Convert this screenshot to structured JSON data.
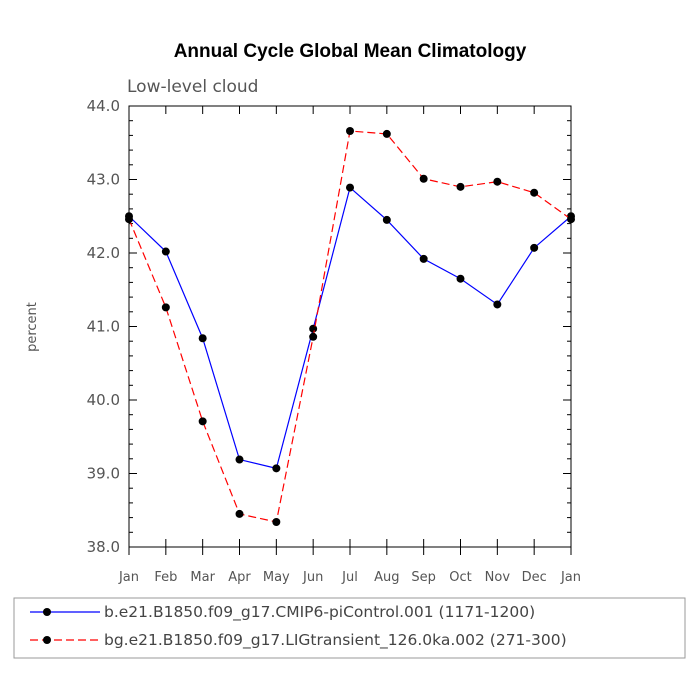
{
  "chart_data": {
    "type": "line",
    "title": "Annual Cycle Global Mean Climatology",
    "subtitle": "Low-level cloud",
    "xlabel": "",
    "ylabel": "percent",
    "categories": [
      "Jan",
      "Feb",
      "Mar",
      "Apr",
      "May",
      "Jun",
      "Jul",
      "Aug",
      "Sep",
      "Oct",
      "Nov",
      "Dec",
      "Jan"
    ],
    "ylim": [
      38.0,
      44.0
    ],
    "yticks": [
      "38.0",
      "39.0",
      "40.0",
      "41.0",
      "42.0",
      "43.0",
      "44.0"
    ],
    "series": [
      {
        "name": "b.e21.B1850.f09_g17.CMIP6-piControl.001 (1171-1200)",
        "color": "#0000ff",
        "dash": "solid",
        "values": [
          42.5,
          42.02,
          40.84,
          39.19,
          39.07,
          40.97,
          42.89,
          42.45,
          41.92,
          41.65,
          41.3,
          42.07,
          42.5
        ]
      },
      {
        "name": "bg.e21.B1850.f09_g17.LIGtransient_126.0ka.002 (271-300)",
        "color": "#ff0000",
        "dash": "dashed",
        "values": [
          42.46,
          41.26,
          39.71,
          38.45,
          38.34,
          40.86,
          43.66,
          43.62,
          43.01,
          42.9,
          42.97,
          42.82,
          42.46
        ]
      }
    ],
    "legend_position": "bottom"
  }
}
